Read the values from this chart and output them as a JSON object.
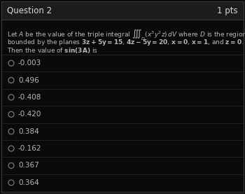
{
  "bg_color": "#0a0a0a",
  "header_bg": "#1c1c1c",
  "header_text": "Question 2",
  "pts_text": "1 pts",
  "header_text_color": "#d8d8d8",
  "body_text_color": "#b8b8b8",
  "line_color": "#2a2a2a",
  "options": [
    "-0.003",
    "0.496",
    "-0.408",
    "-0.420",
    "0.384",
    "-0.162",
    "0.367",
    "0.364"
  ],
  "circle_color": "#777777",
  "border_color": "#3a3a3a",
  "font_size_header": 8.5,
  "font_size_body": 6.5,
  "font_size_options": 7.5
}
